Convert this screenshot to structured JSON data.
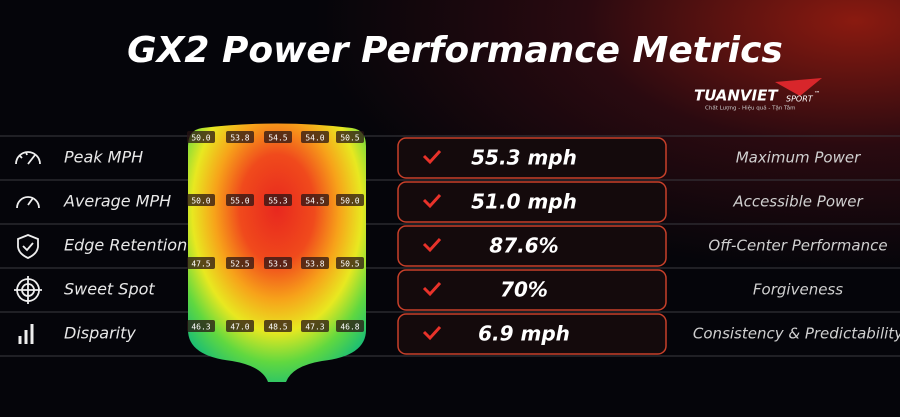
{
  "header": {
    "title": "GX2 Power Performance Metrics"
  },
  "logo": {
    "brand": "TUANVIET",
    "sub": "SPORT",
    "mark": "™",
    "tagline": "Chất Lượng - Hiệu quả - Tận Tâm"
  },
  "metrics": [
    {
      "label": "Peak MPH",
      "value": "55.3 mph",
      "descriptor": "Maximum Power"
    },
    {
      "label": "Average MPH",
      "value": "51.0 mph",
      "descriptor": "Accessible Power"
    },
    {
      "label": "Edge Retention",
      "value": "87.6%",
      "descriptor": "Off-Center Performance"
    },
    {
      "label": "Sweet Spot",
      "value": "70%",
      "descriptor": "Forgiveness"
    },
    {
      "label": "Disparity",
      "value": "6.9 mph",
      "descriptor": "Consistency & Predictability"
    }
  ],
  "heatmap": {
    "rows": [
      [
        "50.0",
        "53.8",
        "54.5",
        "54.0",
        "50.5"
      ],
      [
        "50.0",
        "55.0",
        "55.3",
        "54.5",
        "50.0"
      ],
      [
        "47.5",
        "52.5",
        "53.5",
        "53.8",
        "50.5"
      ],
      [
        "46.3",
        "47.0",
        "48.5",
        "47.3",
        "46.8"
      ]
    ]
  }
}
